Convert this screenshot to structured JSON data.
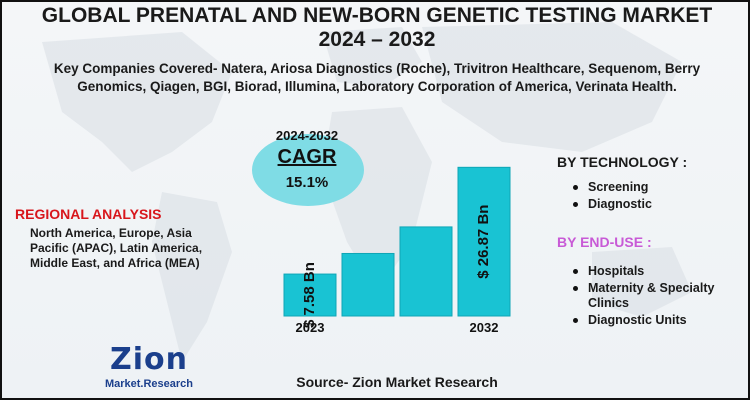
{
  "title_line1": "GLOBAL PRENATAL AND NEW-BORN GENETIC TESTING MARKET",
  "title_line2": "2024 – 2032",
  "companies": "Key Companies Covered- Natera, Ariosa Diagnostics (Roche), Trivitron Healthcare, Sequenom, Berry Genomics, Qiagen, BGI, Biorad, Illumina, Laboratory Corporation of America, Verinata Health.",
  "cagr": {
    "years": "2024-2032",
    "label": "CAGR",
    "value": "15.1%"
  },
  "regional": {
    "title": "REGIONAL ANALYSIS",
    "text": "North America, Europe, Asia Pacific (APAC), Latin America, Middle East, and Africa (MEA)"
  },
  "technology": {
    "title": "BY TECHNOLOGY :",
    "items": [
      "Screening",
      "Diagnostic"
    ]
  },
  "end_use": {
    "title": "BY END-USE :",
    "items": [
      "Hospitals",
      "Maternity & Specialty Clinics",
      "Diagnostic Units"
    ]
  },
  "source": "Source- Zion Market Research",
  "logo": {
    "word": "Zion",
    "sub": "Market.Research"
  },
  "colors": {
    "bar": "#19c3d3",
    "bar_edge": "#0fa6b6",
    "cagr_bubble": "#7fdce5",
    "regional_title": "#d8161c",
    "end_use_title": "#c85ad6",
    "logo": "#1b3f8c"
  },
  "chart_data": {
    "type": "bar",
    "categories": [
      "2023",
      "",
      "",
      "2032"
    ],
    "values": [
      7.58,
      11.3,
      16.1,
      26.87
    ],
    "value_labels": [
      "$ 7.58 Bn",
      "",
      "",
      "$ 26.87 Bn"
    ],
    "x_tick_labels": [
      "2023",
      "2032"
    ],
    "ylim": [
      0,
      30
    ],
    "grid": false
  }
}
